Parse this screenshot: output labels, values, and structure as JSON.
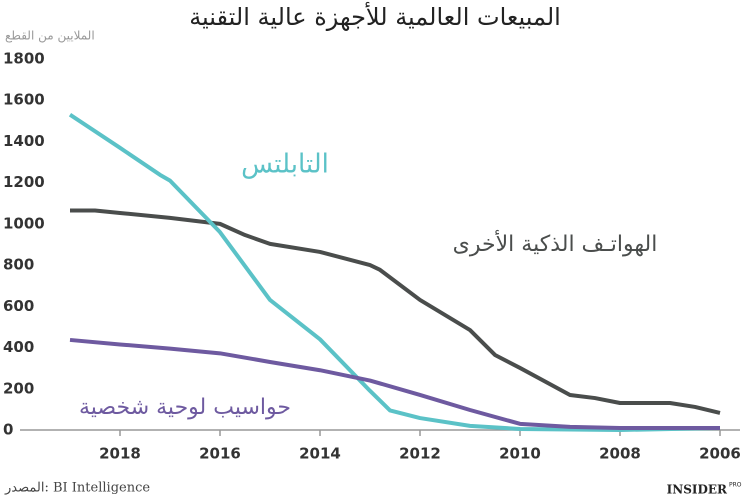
{
  "chart_data": {
    "type": "line",
    "title": "المبيعات العالمية للأجهزة عالية التقنية",
    "y_label": "الملايين من القطع",
    "source": "المصدر: BI Intelligence",
    "logo": "INSIDER",
    "logo_sub": "PRO",
    "xlim": [
      2020,
      2005.6
    ],
    "ylim": [
      0,
      1800
    ],
    "xticks": [
      2018,
      2016,
      2014,
      2012,
      2010,
      2008,
      2006
    ],
    "yticks": [
      0,
      200,
      400,
      600,
      800,
      1000,
      1200,
      1400,
      1600,
      1800
    ],
    "series": [
      {
        "name": "الهواتـف الذكية الأخرى",
        "color": "#4a4d4c",
        "x": [
          2019,
          2018.5,
          2018,
          2017,
          2016,
          2015.5,
          2015,
          2014,
          2013,
          2012.8,
          2012,
          2011,
          2010.5,
          2010,
          2009,
          2008.5,
          2008,
          2007,
          2006.5,
          2006
        ],
        "values": [
          1065,
          1065,
          1053,
          1029,
          1000,
          946,
          903,
          864,
          800,
          777,
          631,
          485,
          364,
          301,
          170,
          155,
          131,
          131,
          112,
          83
        ]
      },
      {
        "name": "التابلتس",
        "color": "#5bc2c7",
        "x": [
          2019,
          2018,
          2017.2,
          2017,
          2016,
          2015,
          2014,
          2013,
          2012.6,
          2012,
          2011,
          2010,
          2008,
          2006
        ],
        "values": [
          1530,
          1369,
          1238,
          1210,
          960,
          631,
          440,
          190,
          95,
          58,
          20,
          5,
          0,
          10
        ]
      },
      {
        "name": "حواسيب لوحية شخصية",
        "color": "#6e5aa0",
        "x": [
          2019,
          2018,
          2017,
          2016,
          2015,
          2014,
          2013,
          2012,
          2011,
          2010,
          2009,
          2008,
          2006
        ],
        "values": [
          437,
          415,
          395,
          372,
          330,
          290,
          240,
          170,
          97,
          30,
          15,
          10,
          10
        ]
      }
    ]
  }
}
